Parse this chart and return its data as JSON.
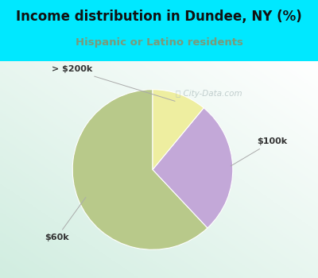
{
  "title": "Income distribution in Dundee, NY (%)",
  "subtitle": "Hispanic or Latino residents",
  "slices": [
    {
      "label": "$60k",
      "value": 62,
      "color": "#b8c98a"
    },
    {
      "label": "$100k",
      "value": 27,
      "color": "#c3a8d8"
    },
    {
      "label": "> $200k",
      "value": 11,
      "color": "#eeeea0"
    }
  ],
  "startangle": 90,
  "bg_cyan": "#00e8ff",
  "title_color": "#111111",
  "subtitle_color": "#7a9a7a",
  "watermark": "City-Data.com",
  "label_color": "#333333",
  "line_color": "#aaaaaa"
}
